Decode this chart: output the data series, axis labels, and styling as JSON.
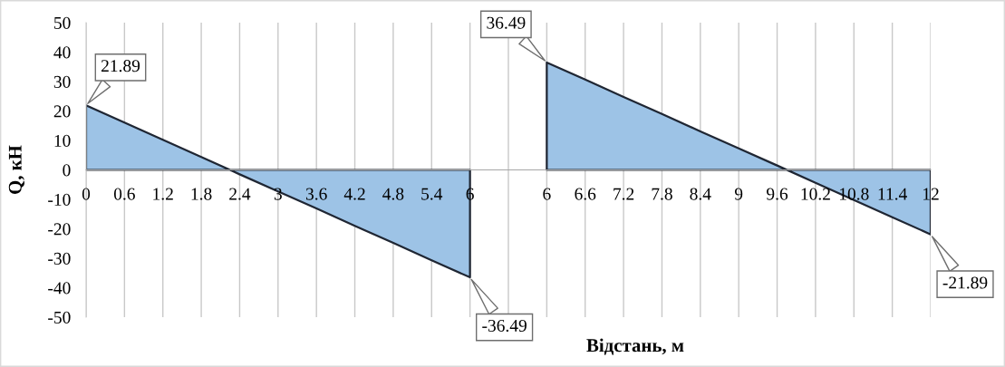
{
  "chart_data": {
    "type": "area",
    "xlabel": "Відстань, м",
    "ylabel": "Q, кН",
    "categories": [
      "0",
      "0.6",
      "1.2",
      "1.8",
      "2.4",
      "3",
      "3.6",
      "4.2",
      "4.8",
      "5.4",
      "6",
      null,
      "6",
      "6.6",
      "7.2",
      "7.8",
      "8.4",
      "9",
      "9.6",
      "10.2",
      "10.8",
      "11.4",
      "12"
    ],
    "series": [
      {
        "color": "#9dc3e6",
        "values": [
          21.89,
          16.1,
          10.2,
          4.4,
          -1.5,
          -7.3,
          -13.1,
          -19.0,
          -24.8,
          -30.7,
          -36.49,
          null,
          null,
          null,
          null,
          null,
          null,
          null,
          null,
          null,
          null,
          null,
          null
        ],
        "value_labels": [
          "21.89",
          null,
          null,
          null,
          null,
          null,
          null,
          null,
          null,
          null,
          "-36.49",
          null,
          null,
          null,
          null,
          null,
          null,
          null,
          null,
          null,
          null,
          null,
          null
        ]
      },
      {
        "color": "#9dc3e6",
        "values": [
          null,
          null,
          null,
          null,
          null,
          null,
          null,
          null,
          null,
          null,
          null,
          null,
          36.49,
          30.7,
          24.8,
          19.0,
          13.1,
          7.3,
          1.5,
          -4.4,
          -10.2,
          -16.1,
          -21.89
        ],
        "value_labels": [
          null,
          null,
          null,
          null,
          null,
          null,
          null,
          null,
          null,
          null,
          null,
          null,
          "36.49",
          null,
          null,
          null,
          null,
          null,
          null,
          null,
          null,
          null,
          "-21.89"
        ]
      }
    ],
    "ylim": [
      -50,
      50
    ],
    "yticks": [
      -50,
      -40,
      -30,
      -20,
      -10,
      0,
      10,
      20,
      30,
      40,
      50
    ],
    "grid": "x"
  }
}
